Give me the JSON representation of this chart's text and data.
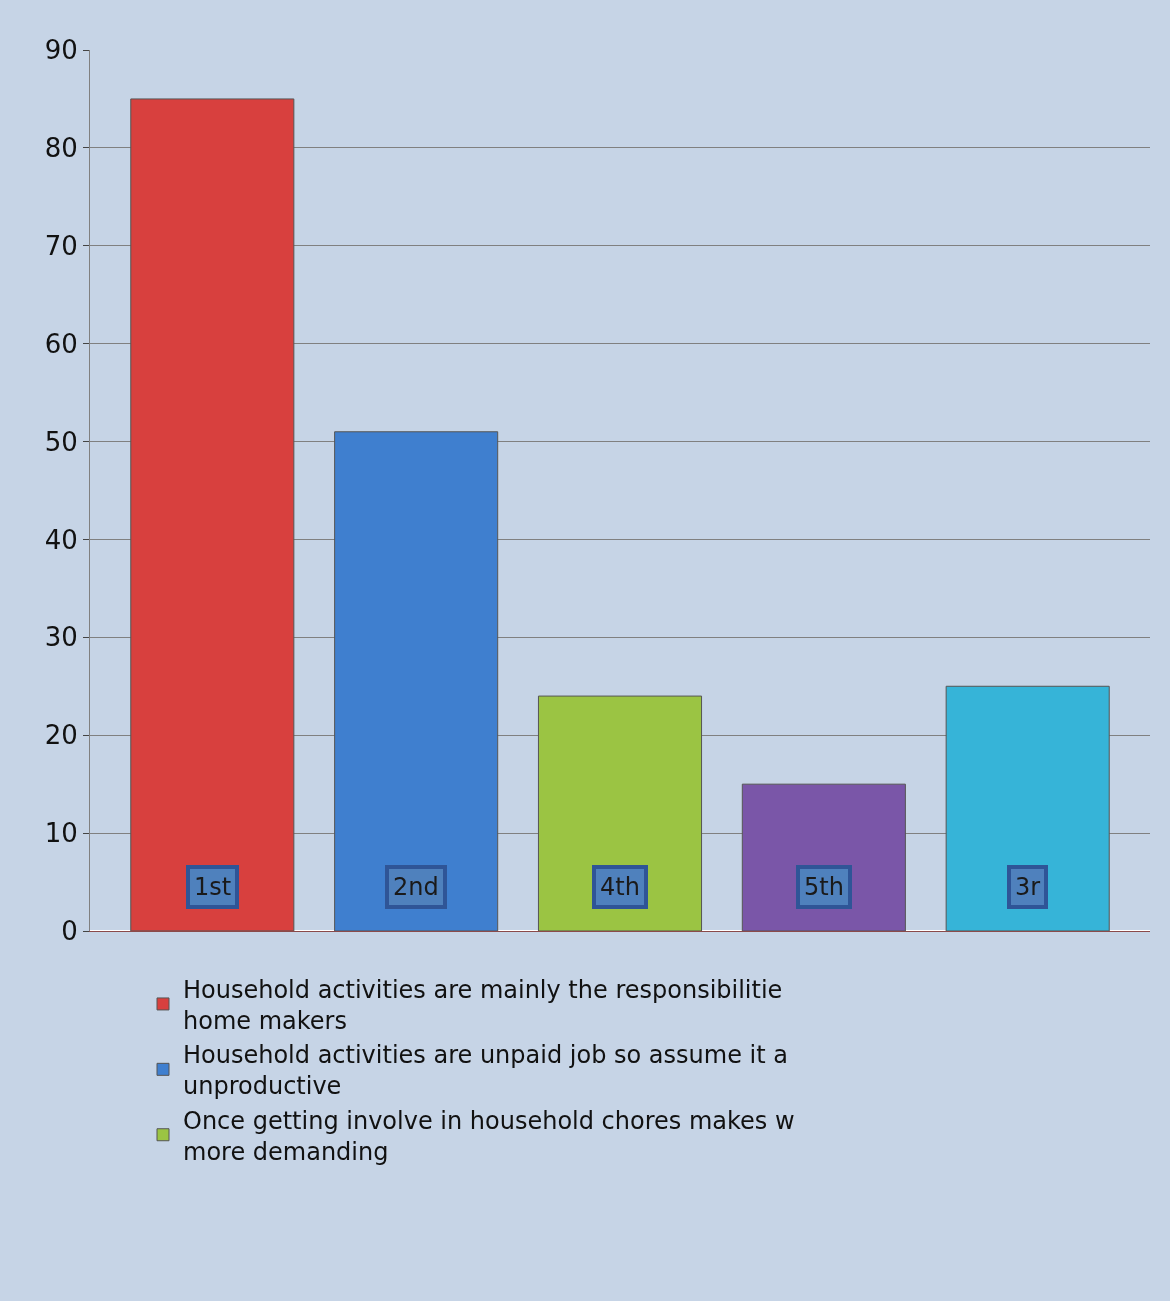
{
  "chart_data": {
    "type": "bar",
    "categories": [
      "1st",
      "2nd",
      "4th",
      "5th",
      "3r"
    ],
    "series": [
      {
        "name": "Household activities are mainly the responsibilitie home makers",
        "color": "#d8403e",
        "values": [
          85,
          null,
          null,
          null,
          null
        ]
      },
      {
        "name": "Household activities are unpaid job so assume it a unproductive",
        "color": "#3f7fcf",
        "values": [
          null,
          51,
          null,
          null,
          null
        ]
      },
      {
        "name": "Once getting involve in household chores makes w more demanding",
        "color": "#9bc443",
        "values": [
          null,
          null,
          24,
          null,
          null
        ]
      },
      {
        "color": "#7a56a8",
        "values": [
          null,
          null,
          null,
          15,
          null
        ]
      },
      {
        "color": "#36b4d8",
        "values": [
          null,
          null,
          null,
          null,
          25
        ]
      }
    ],
    "ylim": [
      0,
      90
    ],
    "yticks": [
      0,
      10,
      20,
      30,
      40,
      50,
      60,
      70,
      80,
      90
    ],
    "grid": "y",
    "legend": "bottom"
  }
}
